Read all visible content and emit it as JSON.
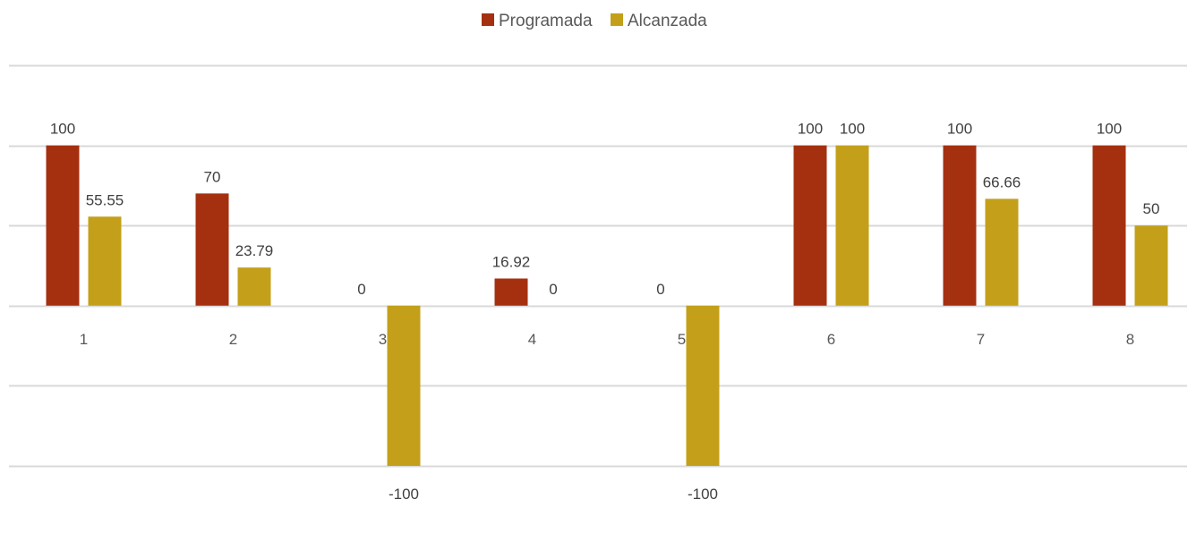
{
  "chart_data": {
    "type": "bar",
    "title": "",
    "xlabel": "",
    "ylabel": "",
    "categories": [
      "1",
      "2",
      "3",
      "4",
      "5",
      "6",
      "7",
      "8"
    ],
    "series": [
      {
        "name": "Programada",
        "color": "#A5300F",
        "values": [
          100,
          70,
          0,
          16.92,
          0,
          100,
          100,
          100
        ],
        "labels": [
          "100",
          "70",
          "0",
          "16.92",
          "0",
          "100",
          "100",
          "100"
        ]
      },
      {
        "name": "Alcanzada",
        "color": "#C4A01A",
        "values": [
          55.55,
          23.79,
          -100,
          0,
          -100,
          100,
          66.66,
          50
        ],
        "labels": [
          "55.55",
          "23.79",
          "-100",
          "0",
          "-100",
          "100",
          "66.66",
          "50"
        ]
      }
    ],
    "ylim": [
      -100,
      150
    ],
    "gridlines": [
      -100,
      -50,
      0,
      50,
      100,
      150
    ],
    "grid": true,
    "y_axis_labels_shown": false,
    "legend_position": "top-center",
    "gridline_color": "#D9D9D9"
  }
}
